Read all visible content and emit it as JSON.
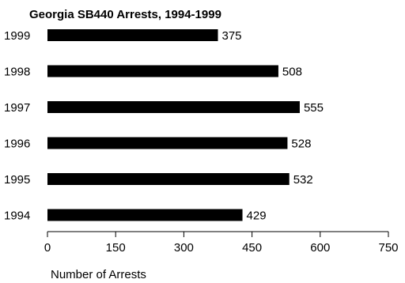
{
  "chart_data": {
    "type": "bar",
    "orientation": "horizontal",
    "title": "Georgia SB440 Arrests, 1994-1999",
    "xlabel": "Number of Arrests",
    "ylabel": "",
    "categories": [
      "1999",
      "1998",
      "1997",
      "1996",
      "1995",
      "1994"
    ],
    "values": [
      375,
      508,
      555,
      528,
      532,
      429
    ],
    "value_labels": [
      "375",
      "508",
      "555",
      "528",
      "532",
      "429"
    ],
    "xlim": [
      0,
      750
    ],
    "ticks": [
      0,
      150,
      300,
      450,
      600,
      750
    ],
    "tick_labels": [
      "0",
      "150",
      "300",
      "450",
      "600",
      "750"
    ],
    "grid": false,
    "bar_color": "#000000"
  }
}
